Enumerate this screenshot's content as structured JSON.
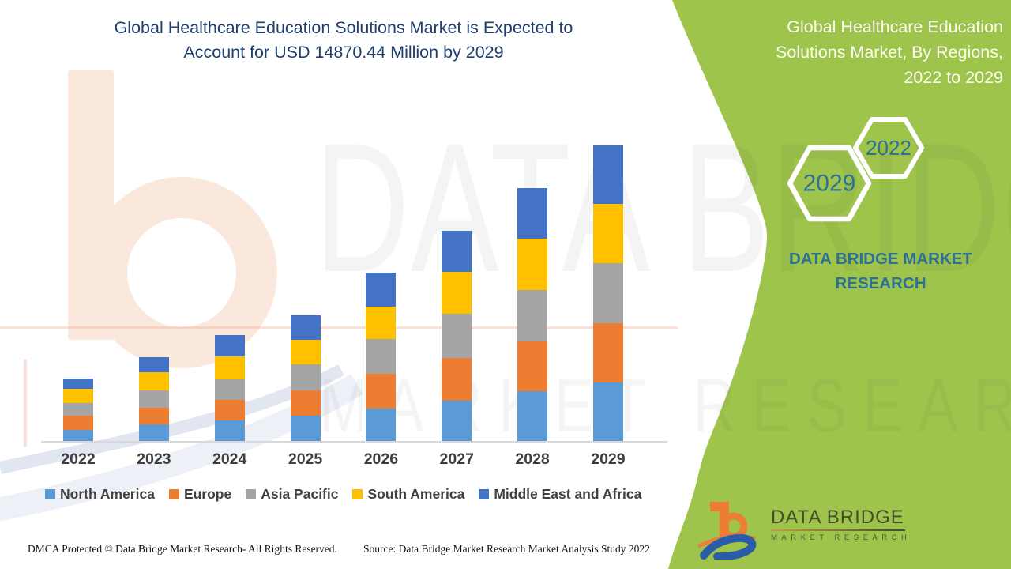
{
  "header": {
    "title_line1": "Global Healthcare Education Solutions Market is Expected to",
    "title_line2": "Account for USD 14870.44 Million by 2029"
  },
  "side_panel": {
    "heading_line1": "Global Healthcare Education",
    "heading_line2": "Solutions Market, By Regions,",
    "heading_line3": "2022 to 2029",
    "hexagon_back_year": "2029",
    "hexagon_front_year": "2022",
    "brand_line1": "DATA BRIDGE MARKET",
    "brand_line2": "RESEARCH",
    "panel_color": "#9EC44C",
    "accent_text_color": "#2E7194"
  },
  "chart_data": {
    "type": "bar",
    "stacked": true,
    "title": "Global Healthcare Education Solutions Market, By Regions, 2022 to 2029",
    "unit": "USD Million",
    "categories": [
      "2022",
      "2023",
      "2024",
      "2025",
      "2026",
      "2027",
      "2028",
      "2029"
    ],
    "series": [
      {
        "name": "North America",
        "color": "#5B9BD5",
        "values": [
          570,
          820,
          1020,
          1260,
          1630,
          2045,
          2495,
          2944.44
        ]
      },
      {
        "name": "Europe",
        "color": "#ED7D31",
        "values": [
          715,
          835,
          1060,
          1275,
          1750,
          2135,
          2520,
          2984
        ]
      },
      {
        "name": "Asia Pacific",
        "color": "#A5A5A5",
        "values": [
          610,
          905,
          1035,
          1315,
          1765,
          2215,
          2585,
          3000
        ]
      },
      {
        "name": "South America",
        "color": "#FFC000",
        "values": [
          715,
          885,
          1155,
          1230,
          1630,
          2135,
          2575,
          2985
        ]
      },
      {
        "name": "Middle East and Africa",
        "color": "#4472C4",
        "values": [
          530,
          785,
          1060,
          1260,
          1710,
          2040,
          2535,
          2957
        ]
      }
    ],
    "totals": [
      3140,
      4230,
      5330,
      6340,
      8485,
      10570,
      12710,
      14870.44
    ],
    "ylim": [
      0,
      15000
    ],
    "gridlines": false,
    "legend_position": "bottom"
  },
  "watermark": {
    "line1": "DATA BRIDGE",
    "line2": "MARKET RESEARCH"
  },
  "footer": {
    "dmca_text": "DMCA Protected © Data Bridge Market Research- All Rights Reserved.",
    "source_text": "Source: Data Bridge Market Research Market Analysis Study 2022"
  },
  "logo": {
    "name": "DATA BRIDGE",
    "subtitle": "MARKET RESEARCH"
  }
}
